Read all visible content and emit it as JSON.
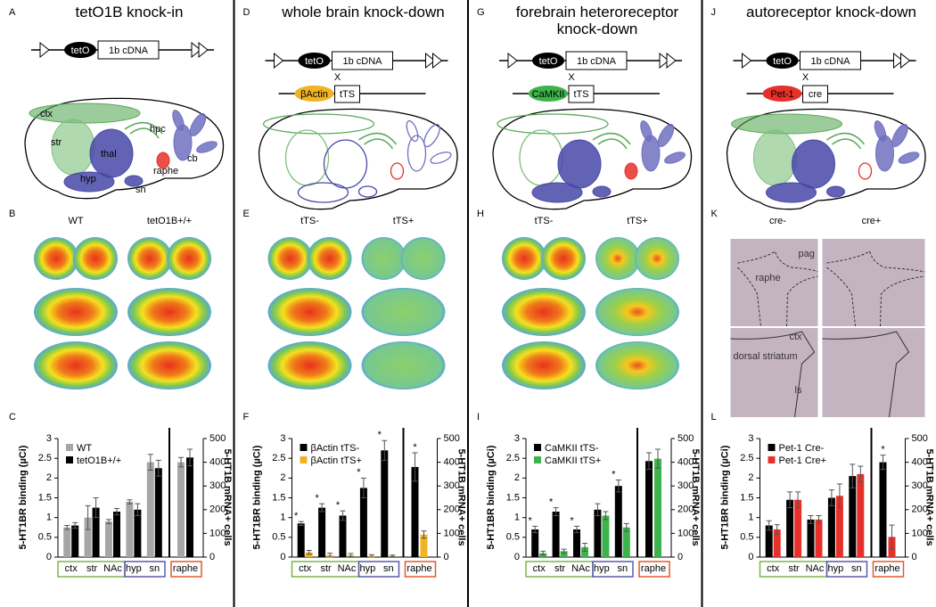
{
  "panels": [
    {
      "letter": "A",
      "title": "tetO1B knock-in",
      "construct": [
        "tetO",
        "1b cDNA"
      ],
      "brain_labels": [
        "ctx",
        "str",
        "hpc",
        "thal",
        "cb",
        "raphe",
        "hyp",
        "sn"
      ],
      "image_letter": "B",
      "image_labels": [
        "WT",
        "tetO1B+/+"
      ],
      "chart_letter": "C"
    },
    {
      "letter": "D",
      "title": "whole brain knock-down",
      "construct": [
        "tetO",
        "1b cDNA"
      ],
      "cross": "X",
      "driver": [
        "βActin",
        "tTS"
      ],
      "driver_color": "#f0b323",
      "image_letter": "E",
      "image_labels": [
        "tTS-",
        "tTS+"
      ],
      "chart_letter": "F"
    },
    {
      "letter": "G",
      "title": "forebrain heteroreceptor knock-down",
      "construct": [
        "tetO",
        "1b cDNA"
      ],
      "cross": "X",
      "driver": [
        "CaMKII",
        "tTS"
      ],
      "driver_color": "#3cb44b",
      "image_letter": "H",
      "image_labels": [
        "tTS-",
        "tTS+"
      ],
      "chart_letter": "I"
    },
    {
      "letter": "J",
      "title": "autoreceptor knock-down",
      "construct": [
        "tetO",
        "1b cDNA"
      ],
      "cross": "X",
      "driver": [
        "Pet-1",
        "cre"
      ],
      "driver_color": "#e8302a",
      "image_letter": "K",
      "image_labels": [
        "cre-",
        "cre+"
      ],
      "section_labels": [
        "pag",
        "raphe",
        "ctx",
        "dorsal striatum",
        "ls"
      ],
      "chart_letter": "L"
    }
  ],
  "chart_data": [
    {
      "type": "bar",
      "ylabel": "5-HT1BR binding (µCi)",
      "y2label": "5-HT1B mRNA+ cells",
      "categories": [
        "ctx",
        "str",
        "NAc",
        "hyp",
        "sn"
      ],
      "y2_categories": [
        "raphe"
      ],
      "series": [
        {
          "name": "WT",
          "color": "#a6a6a6",
          "values": [
            0.75,
            1.0,
            0.9,
            1.4,
            2.4
          ],
          "errors": [
            0.05,
            0.3,
            0.05,
            0.05,
            0.2
          ],
          "y2_values": [
            400
          ],
          "y2_errors": [
            20
          ]
        },
        {
          "name": "tetO1B+/+",
          "color": "#000000",
          "values": [
            0.8,
            1.25,
            1.15,
            1.2,
            2.25
          ],
          "errors": [
            0.07,
            0.25,
            0.08,
            0.15,
            0.2
          ],
          "y2_values": [
            420
          ],
          "y2_errors": [
            35
          ]
        }
      ],
      "significance": [
        null,
        null,
        null,
        null,
        null
      ],
      "y2_significance": [
        null
      ],
      "ylim": [
        0,
        3
      ],
      "yticks": [
        0,
        0.5,
        1,
        1.5,
        2,
        2.5,
        3
      ],
      "y2lim": [
        0,
        500
      ],
      "y2ticks": [
        0,
        100,
        200,
        300,
        400,
        500
      ],
      "legend": "upper left"
    },
    {
      "type": "bar",
      "ylabel": "5-HT1BR binding (µCi)",
      "y2label": "5-HT1B mRNA+ cells",
      "categories": [
        "ctx",
        "str",
        "NAc",
        "hyp",
        "sn"
      ],
      "y2_categories": [
        "raphe"
      ],
      "series": [
        {
          "name": "βActin tTS-",
          "color": "#000000",
          "values": [
            0.85,
            1.25,
            1.05,
            1.75,
            2.7
          ],
          "errors": [
            0.05,
            0.1,
            0.12,
            0.25,
            0.25
          ],
          "y2_values": [
            380
          ],
          "y2_errors": [
            60
          ]
        },
        {
          "name": "βActin tTS+",
          "color": "#f0b323",
          "values": [
            0.12,
            0.05,
            0.05,
            0.03,
            0.03
          ],
          "errors": [
            0.05,
            0.05,
            0.04,
            0.03,
            0.02
          ],
          "y2_values": [
            95
          ],
          "y2_errors": [
            15
          ]
        }
      ],
      "significance": [
        "*",
        "*",
        "*",
        "*",
        "*"
      ],
      "y2_significance": [
        "*"
      ],
      "ylim": [
        0,
        3
      ],
      "yticks": [
        0,
        0.5,
        1,
        1.5,
        2,
        2.5,
        3
      ],
      "y2lim": [
        0,
        500
      ],
      "y2ticks": [
        0,
        100,
        200,
        300,
        400,
        500
      ],
      "legend": "upper left"
    },
    {
      "type": "bar",
      "ylabel": "5-HT1BR binding (µCi)",
      "y2label": "5-HT1B mRNA+ cells",
      "categories": [
        "ctx",
        "str",
        "NAc",
        "hyp",
        "sn"
      ],
      "y2_categories": [
        "raphe"
      ],
      "series": [
        {
          "name": "CaMKII tTS-",
          "color": "#000000",
          "values": [
            0.7,
            1.15,
            0.7,
            1.2,
            1.8
          ],
          "errors": [
            0.08,
            0.1,
            0.08,
            0.15,
            0.15
          ],
          "y2_values": [
            405
          ],
          "y2_errors": [
            35
          ]
        },
        {
          "name": "CaMKII tTS+",
          "color": "#3cb44b",
          "values": [
            0.1,
            0.15,
            0.25,
            1.05,
            0.75
          ],
          "errors": [
            0.05,
            0.05,
            0.1,
            0.1,
            0.1
          ],
          "y2_values": [
            415
          ],
          "y2_errors": [
            40
          ]
        }
      ],
      "significance": [
        "*",
        "*",
        "*",
        null,
        "*"
      ],
      "y2_significance": [
        null
      ],
      "ylim": [
        0,
        3
      ],
      "yticks": [
        0,
        0.5,
        1,
        1.5,
        2,
        2.5,
        3
      ],
      "y2lim": [
        0,
        500
      ],
      "y2ticks": [
        0,
        100,
        200,
        300,
        400,
        500
      ],
      "legend": "upper left"
    },
    {
      "type": "bar",
      "ylabel": "5-HT1BR binding (µCi)",
      "y2label": "5-HT1B mRNA+ cells",
      "categories": [
        "ctx",
        "str",
        "NAc",
        "hyp",
        "sn"
      ],
      "y2_categories": [
        "raphe"
      ],
      "series": [
        {
          "name": "Pet-1 Cre-",
          "color": "#000000",
          "values": [
            0.8,
            1.45,
            0.95,
            1.5,
            2.05
          ],
          "errors": [
            0.12,
            0.2,
            0.1,
            0.2,
            0.3
          ],
          "y2_values": [
            400
          ],
          "y2_errors": [
            30
          ]
        },
        {
          "name": "Pet-1 Cre+",
          "color": "#e8302a",
          "values": [
            0.7,
            1.45,
            0.95,
            1.55,
            2.1
          ],
          "errors": [
            0.12,
            0.2,
            0.1,
            0.3,
            0.2
          ],
          "y2_values": [
            85
          ],
          "y2_errors": [
            50
          ]
        }
      ],
      "significance": [
        null,
        null,
        null,
        null,
        null
      ],
      "y2_significance": [
        "*"
      ],
      "ylim": [
        0,
        3
      ],
      "yticks": [
        0,
        0.5,
        1,
        1.5,
        2,
        2.5,
        3
      ],
      "y2lim": [
        0,
        500
      ],
      "y2ticks": [
        0,
        100,
        200,
        300,
        400,
        500
      ],
      "legend": "upper left"
    }
  ]
}
